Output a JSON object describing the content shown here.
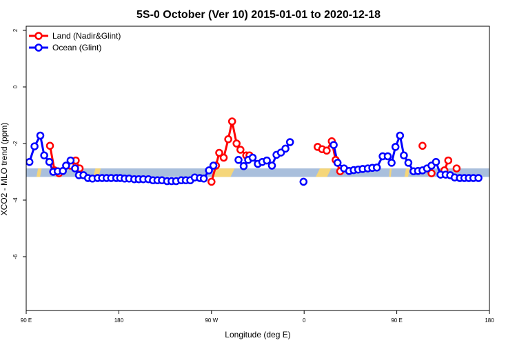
{
  "chart_data": {
    "type": "line",
    "title": "5S-0 October (Ver 10)   2015-01-01 to 2020-12-18",
    "xlabel": "Longitude (deg E)",
    "ylabel": "XCO2 - MLO trend (ppm)",
    "xlim": [
      90,
      450
    ],
    "ylim": [
      -8,
      2
    ],
    "x_ticks": [
      {
        "value": 90,
        "label": "90 E"
      },
      {
        "value": 162,
        "label": "180"
      },
      {
        "value": 234,
        "label": "90 W"
      },
      {
        "value": 306,
        "label": "0"
      },
      {
        "value": 378,
        "label": "90 E"
      },
      {
        "value": 450,
        "label": "180"
      }
    ],
    "y_ticks": [
      {
        "value": 2,
        "label": "2"
      },
      {
        "value": 0,
        "label": "0"
      },
      {
        "value": -2,
        "label": "-2"
      },
      {
        "value": -4,
        "label": "-4"
      },
      {
        "value": -6,
        "label": "-6"
      }
    ],
    "legend_position": "top-left",
    "colors": {
      "land": "#ff0000",
      "ocean": "#0000ff",
      "band_ocean": "#a9bfdc",
      "band_land": "#f5d67a"
    },
    "band": {
      "y_top": -2.88,
      "y_bottom": -3.18
    },
    "land_segments": [
      [
        98,
        102
      ],
      [
        142,
        148
      ],
      [
        235,
        252
      ],
      [
        315,
        327
      ],
      [
        372,
        374
      ],
      [
        384,
        388
      ]
    ],
    "series": [
      {
        "name": "Land (Nadir&Glint)",
        "color": "#ff0000",
        "points": [
          [
            108.5,
            -2.08
          ],
          [
            112,
            -2.95
          ],
          [
            115.5,
            -3.05
          ],
          [
            124.5,
            -2.78
          ],
          [
            128.5,
            -2.6
          ],
          [
            131.5,
            -2.88
          ],
          [
            234,
            -3.35
          ],
          [
            237.5,
            -2.78
          ],
          [
            240,
            -2.33
          ],
          [
            243.5,
            -2.5
          ],
          [
            247,
            -1.85
          ],
          [
            250,
            -1.22
          ],
          [
            253.5,
            -2.0
          ],
          [
            256.5,
            -2.22
          ],
          [
            261,
            -2.42
          ],
          [
            263.5,
            -2.42
          ],
          [
            316.5,
            -2.12
          ],
          [
            320,
            -2.2
          ],
          [
            323.5,
            -2.25
          ],
          [
            327.5,
            -1.92
          ],
          [
            330.5,
            -2.58
          ],
          [
            334,
            -2.98
          ],
          [
            398,
            -2.08
          ],
          [
            405,
            -3.05
          ],
          [
            415,
            -2.95
          ],
          [
            418,
            -2.6
          ],
          [
            424.5,
            -2.88
          ]
        ]
      },
      {
        "name": "Ocean (Glint)",
        "color": "#0000ff",
        "points": [
          [
            92.5,
            -2.65
          ],
          [
            96.5,
            -2.1
          ],
          [
            101,
            -1.72
          ],
          [
            104,
            -2.42
          ],
          [
            108,
            -2.65
          ],
          [
            111,
            -3.0
          ],
          [
            114.5,
            -2.98
          ],
          [
            118.5,
            -2.97
          ],
          [
            121,
            -2.78
          ],
          [
            124.5,
            -2.6
          ],
          [
            128,
            -2.88
          ],
          [
            131,
            -3.12
          ],
          [
            134.5,
            -3.12
          ],
          [
            138,
            -3.22
          ],
          [
            141.5,
            -3.24
          ],
          [
            145.5,
            -3.22
          ],
          [
            149,
            -3.22
          ],
          [
            152.5,
            -3.22
          ],
          [
            156,
            -3.22
          ],
          [
            160,
            -3.22
          ],
          [
            163,
            -3.22
          ],
          [
            166.5,
            -3.24
          ],
          [
            170,
            -3.24
          ],
          [
            174,
            -3.26
          ],
          [
            177.5,
            -3.26
          ],
          [
            181,
            -3.26
          ],
          [
            185,
            -3.26
          ],
          [
            188.5,
            -3.3
          ],
          [
            192,
            -3.3
          ],
          [
            195.5,
            -3.3
          ],
          [
            199.5,
            -3.33
          ],
          [
            203,
            -3.33
          ],
          [
            206.5,
            -3.33
          ],
          [
            210.5,
            -3.3
          ],
          [
            214,
            -3.3
          ],
          [
            217.5,
            -3.3
          ],
          [
            221,
            -3.2
          ],
          [
            225,
            -3.22
          ],
          [
            228,
            -3.24
          ],
          [
            232,
            -2.95
          ],
          [
            235.5,
            -2.78
          ],
          [
            255,
            -2.58
          ],
          [
            259,
            -2.8
          ],
          [
            262.5,
            -2.58
          ],
          [
            266,
            -2.5
          ],
          [
            270,
            -2.72
          ],
          [
            273.5,
            -2.65
          ],
          [
            277,
            -2.6
          ],
          [
            281,
            -2.78
          ],
          [
            284.5,
            -2.4
          ],
          [
            288,
            -2.32
          ],
          [
            291.5,
            -2.18
          ],
          [
            295,
            -1.95
          ],
          [
            305.5,
            -3.35
          ],
          [
            329,
            -2.05
          ],
          [
            332,
            -2.68
          ],
          [
            337,
            -2.88
          ],
          [
            341,
            -2.97
          ],
          [
            344.5,
            -2.94
          ],
          [
            348,
            -2.92
          ],
          [
            351.5,
            -2.9
          ],
          [
            355.5,
            -2.88
          ],
          [
            359,
            -2.86
          ],
          [
            362.5,
            -2.85
          ],
          [
            367,
            -2.45
          ],
          [
            371,
            -2.45
          ],
          [
            374,
            -2.68
          ],
          [
            377,
            -2.12
          ],
          [
            380.5,
            -1.72
          ],
          [
            383.5,
            -2.42
          ],
          [
            387,
            -2.68
          ],
          [
            391,
            -2.98
          ],
          [
            394.5,
            -2.97
          ],
          [
            398,
            -2.95
          ],
          [
            401.5,
            -2.88
          ],
          [
            405,
            -2.78
          ],
          [
            408.5,
            -2.65
          ],
          [
            412,
            -3.1
          ],
          [
            416,
            -3.1
          ],
          [
            419.5,
            -3.12
          ],
          [
            423,
            -3.2
          ],
          [
            427,
            -3.22
          ],
          [
            430.5,
            -3.22
          ],
          [
            434,
            -3.22
          ],
          [
            437.5,
            -3.22
          ],
          [
            441.5,
            -3.22
          ]
        ]
      }
    ]
  }
}
